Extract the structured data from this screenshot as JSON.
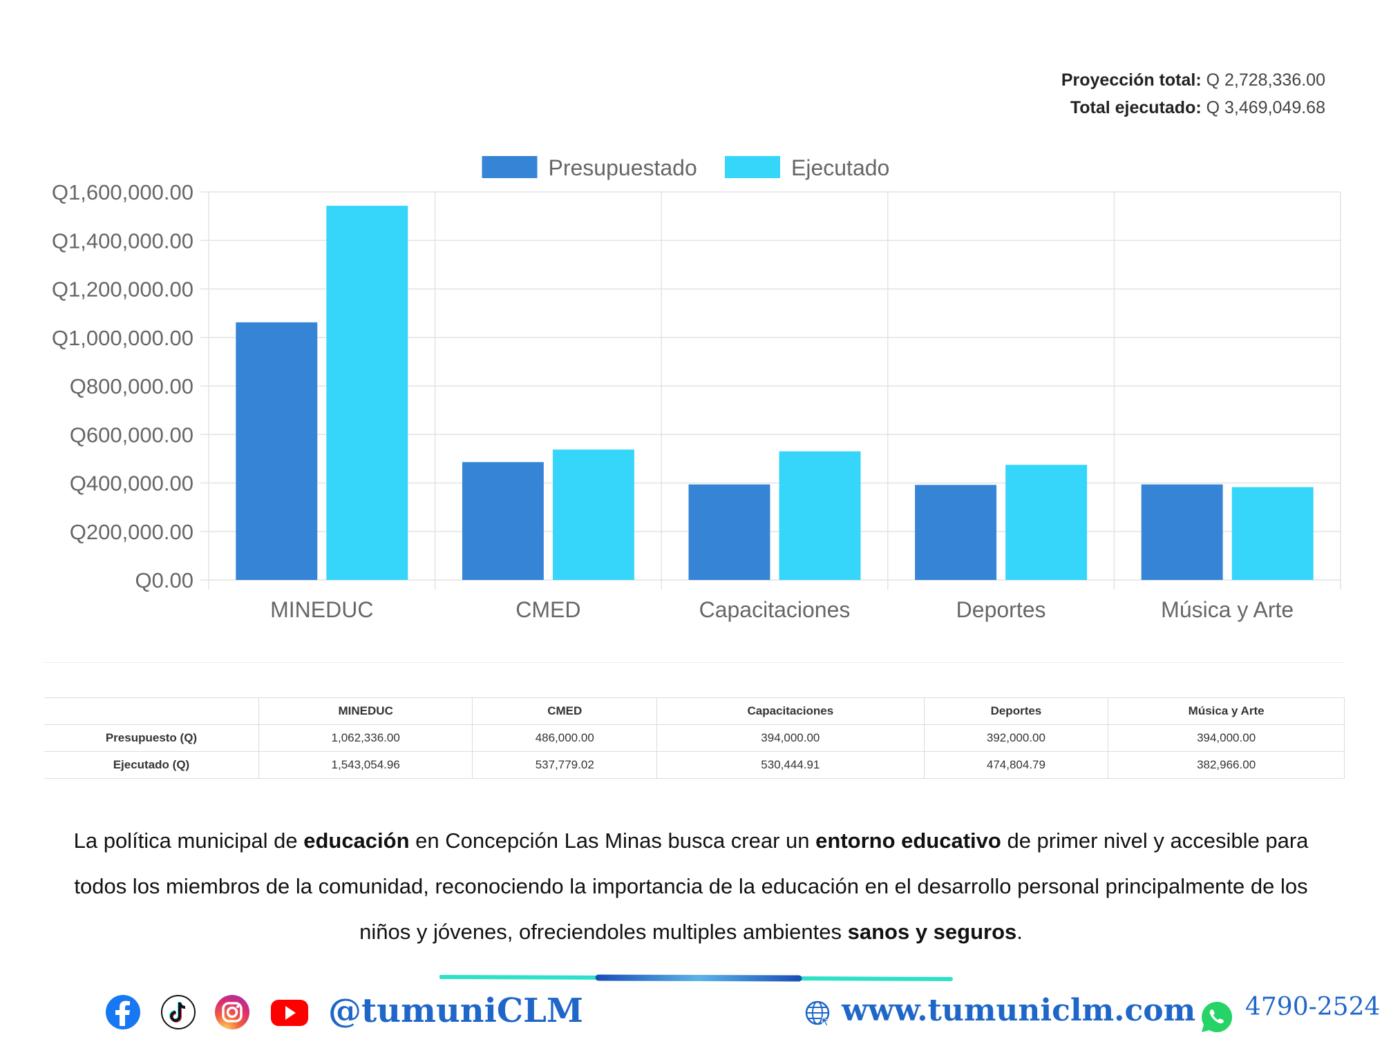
{
  "totals": {
    "proyeccion_label": "Proyección total:",
    "proyeccion_value": "Q 2,728,336.00",
    "ejecutado_label": "Total ejecutado:",
    "ejecutado_value": "Q 3,469,049.68"
  },
  "chart_data": {
    "type": "bar",
    "categories": [
      "MINEDUC",
      "CMED",
      "Capacitaciones",
      "Deportes",
      "Música y Arte"
    ],
    "series": [
      {
        "name": "Presupuestado",
        "color": "#3584d6",
        "values": [
          1062336.0,
          486000.0,
          394000.0,
          392000.0,
          394000.0
        ]
      },
      {
        "name": "Ejecutado",
        "color": "#36d5fa",
        "values": [
          1543054.96,
          537779.02,
          530444.91,
          474804.79,
          382966.0
        ]
      }
    ],
    "ylim": [
      0,
      1600000
    ],
    "yticks": [
      "Q0.00",
      "Q200,000.00",
      "Q400,000.00",
      "Q600,000.00",
      "Q800,000.00",
      "Q1,000,000.00",
      "Q1,200,000.00",
      "Q1,400,000.00",
      "Q1,600,000.00"
    ],
    "grid": true,
    "legend_position": "top-center"
  },
  "table": {
    "headers": [
      "",
      "MINEDUC",
      "CMED",
      "Capacitaciones",
      "Deportes",
      "Música y Arte"
    ],
    "rows": [
      {
        "label": "Presupuesto (Q)",
        "cells": [
          "1,062,336.00",
          "486,000.00",
          "394,000.00",
          "392,000.00",
          "394,000.00"
        ]
      },
      {
        "label": "Ejecutado (Q)",
        "cells": [
          "1,543,054.96",
          "537,779.02",
          "530,444.91",
          "474,804.79",
          "382,966.00"
        ]
      }
    ]
  },
  "paragraph": {
    "t1": "La política municipal de ",
    "b1": "educación",
    "t2": " en Concepción Las Minas busca crear un ",
    "b2": "entorno educativo",
    "t3": " de primer nivel y accesible para todos los miembros de la comunidad, reconociendo la importancia de la educación en el desarrollo personal principalmente de los niños y jóvenes, ofreciendoles multiples ambientes ",
    "b3": "sanos y seguros",
    "t4": "."
  },
  "footer": {
    "handle": "@tumuniCLM",
    "website": "www.tumuniclm.com",
    "phone": "4790-2524",
    "icons": [
      "facebook-icon",
      "tiktok-icon",
      "instagram-icon",
      "youtube-icon",
      "globe-icon",
      "whatsapp-icon"
    ],
    "colors": {
      "brand": "#1e66c8",
      "accent": "#2fe0c8"
    }
  }
}
